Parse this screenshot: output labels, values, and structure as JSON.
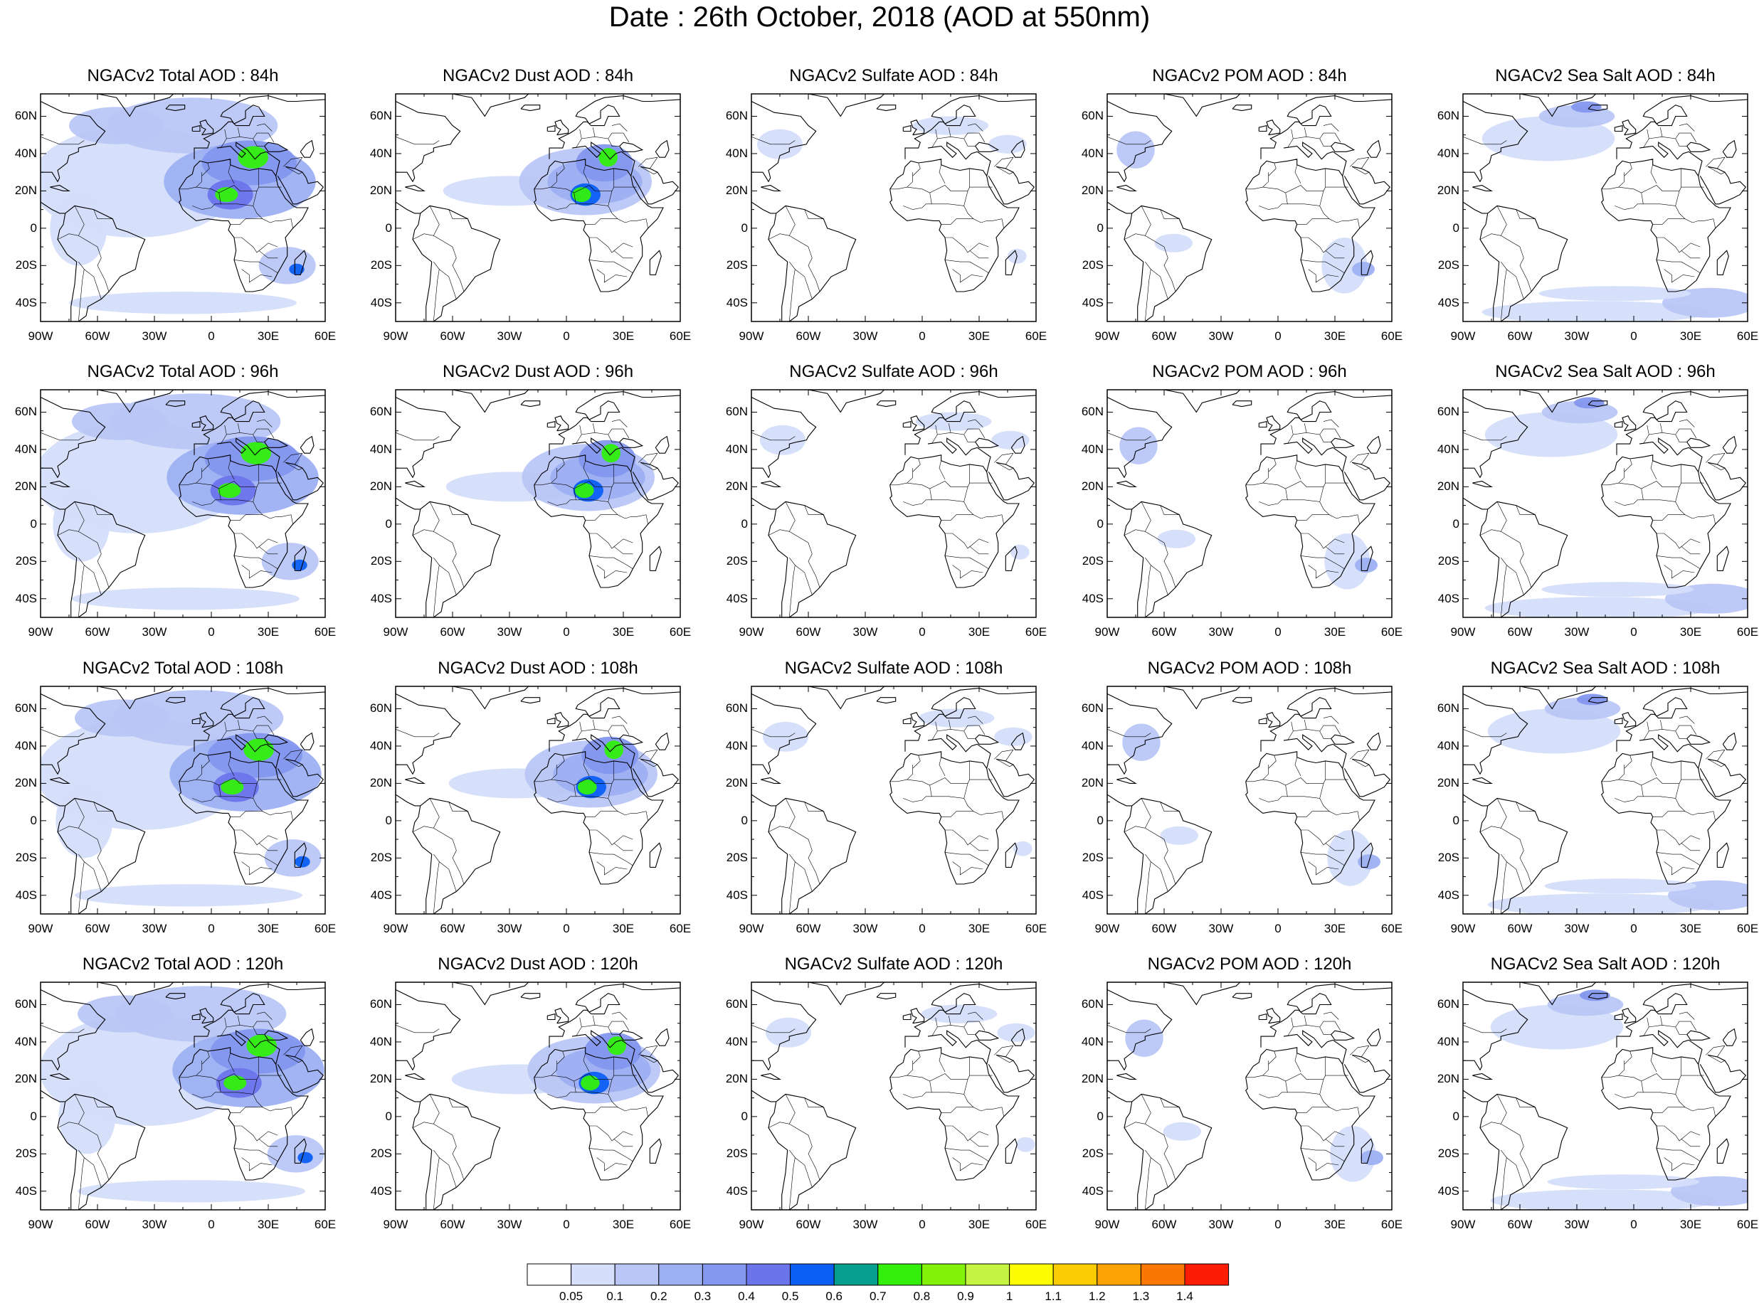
{
  "title": "Date : 26th October, 2018 (AOD at 550nm)",
  "lat_labels": [
    "60N",
    "40N",
    "20N",
    "0",
    "20S",
    "40S"
  ],
  "lon_labels": [
    "90W",
    "60W",
    "30W",
    "0",
    "30E",
    "60E"
  ],
  "panels": [
    [
      {
        "title": "NGACv2 Total AOD : 84h",
        "species": "total",
        "hour": 84
      },
      {
        "title": "NGACv2 Dust AOD : 84h",
        "species": "dust",
        "hour": 84
      },
      {
        "title": "NGACv2 Sulfate AOD : 84h",
        "species": "sulfate",
        "hour": 84
      },
      {
        "title": "NGACv2 POM AOD : 84h",
        "species": "pom",
        "hour": 84
      },
      {
        "title": "NGACv2 Sea Salt AOD : 84h",
        "species": "seasalt",
        "hour": 84
      }
    ],
    [
      {
        "title": "NGACv2 Total AOD : 96h",
        "species": "total",
        "hour": 96
      },
      {
        "title": "NGACv2 Dust AOD : 96h",
        "species": "dust",
        "hour": 96
      },
      {
        "title": "NGACv2 Sulfate AOD : 96h",
        "species": "sulfate",
        "hour": 96
      },
      {
        "title": "NGACv2 POM AOD : 96h",
        "species": "pom",
        "hour": 96
      },
      {
        "title": "NGACv2 Sea Salt AOD : 96h",
        "species": "seasalt",
        "hour": 96
      }
    ],
    [
      {
        "title": "NGACv2 Total AOD : 108h",
        "species": "total",
        "hour": 108
      },
      {
        "title": "NGACv2 Dust AOD : 108h",
        "species": "dust",
        "hour": 108
      },
      {
        "title": "NGACv2 Sulfate AOD : 108h",
        "species": "sulfate",
        "hour": 108
      },
      {
        "title": "NGACv2 POM AOD : 108h",
        "species": "pom",
        "hour": 108
      },
      {
        "title": "NGACv2 Sea Salt AOD : 108h",
        "species": "seasalt",
        "hour": 108
      }
    ],
    [
      {
        "title": "NGACv2 Total AOD : 120h",
        "species": "total",
        "hour": 120
      },
      {
        "title": "NGACv2 Dust AOD : 120h",
        "species": "dust",
        "hour": 120
      },
      {
        "title": "NGACv2 Sulfate AOD : 120h",
        "species": "sulfate",
        "hour": 120
      },
      {
        "title": "NGACv2 POM AOD : 120h",
        "species": "pom",
        "hour": 120
      },
      {
        "title": "NGACv2 Sea Salt  AOD : 120h",
        "species": "seasalt",
        "hour": 120
      }
    ]
  ],
  "colorbar": {
    "labels": [
      "0.05",
      "0.1",
      "0.2",
      "0.3",
      "0.4",
      "0.5",
      "0.6",
      "0.7",
      "0.8",
      "0.9",
      "1",
      "1.1",
      "1.2",
      "1.3",
      "1.4"
    ],
    "colors": [
      "#ffffff",
      "#d5defb",
      "#b9c6f6",
      "#9db0f2",
      "#8497ee",
      "#6b74ea",
      "#0b5ff5",
      "#049f8e",
      "#32f00c",
      "#82f20a",
      "#c6f442",
      "#fdfc03",
      "#fccc03",
      "#fca403",
      "#fc7603",
      "#fb1d06"
    ]
  }
}
